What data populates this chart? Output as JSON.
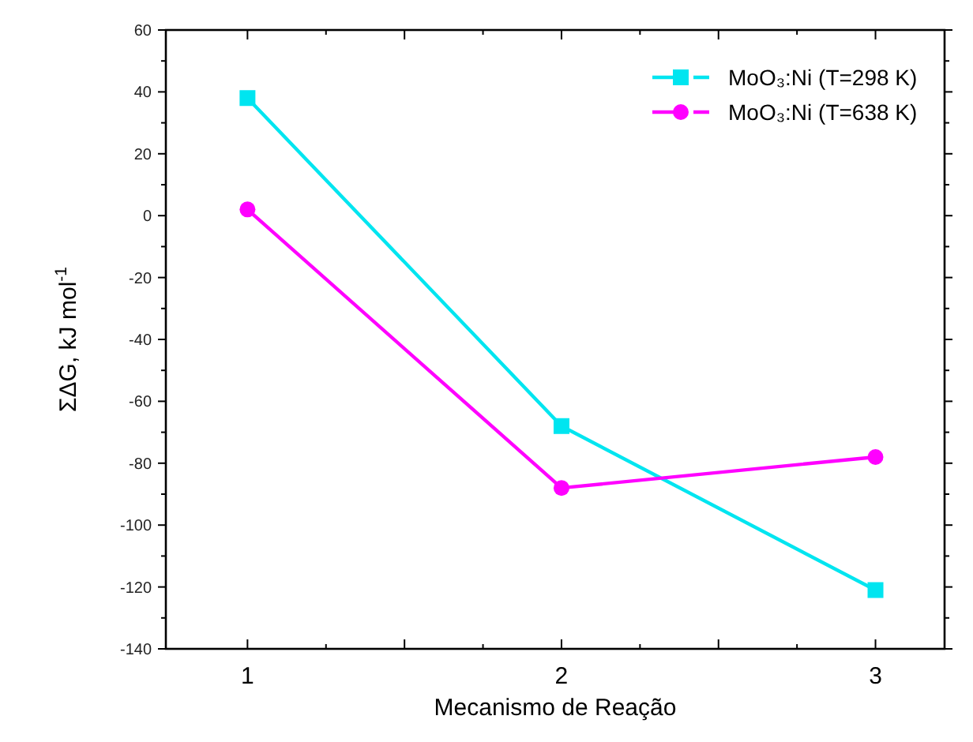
{
  "chart_data": {
    "type": "line",
    "xlabel": "Mecanismo de Reação",
    "ylabel": "ΣΔG, kJ mol$^{-1}$",
    "x": [
      1,
      2,
      3
    ],
    "series": [
      {
        "name": "MoO₃:Ni (T=298 K)",
        "color": "#00e5f0",
        "values": [
          38,
          -68,
          -121
        ],
        "marker": "square"
      },
      {
        "name": "MoO₃:Ni (T=638 K)",
        "color": "#ff00ff",
        "values": [
          2,
          -88,
          -78
        ],
        "marker": "circle"
      }
    ],
    "xlim": [
      0.74,
      3.22
    ],
    "xticks": [
      1,
      {
        "value": 1.5,
        "label": null
      },
      2,
      {
        "value": 2.5,
        "label": null
      },
      3
    ],
    "ylim": [
      -140,
      60
    ],
    "yticks": [
      -140,
      -120,
      -100,
      -80,
      -60,
      -40,
      -20,
      0,
      20,
      40,
      60
    ],
    "legend": "top right",
    "grid": false,
    "line_style": "solid"
  }
}
